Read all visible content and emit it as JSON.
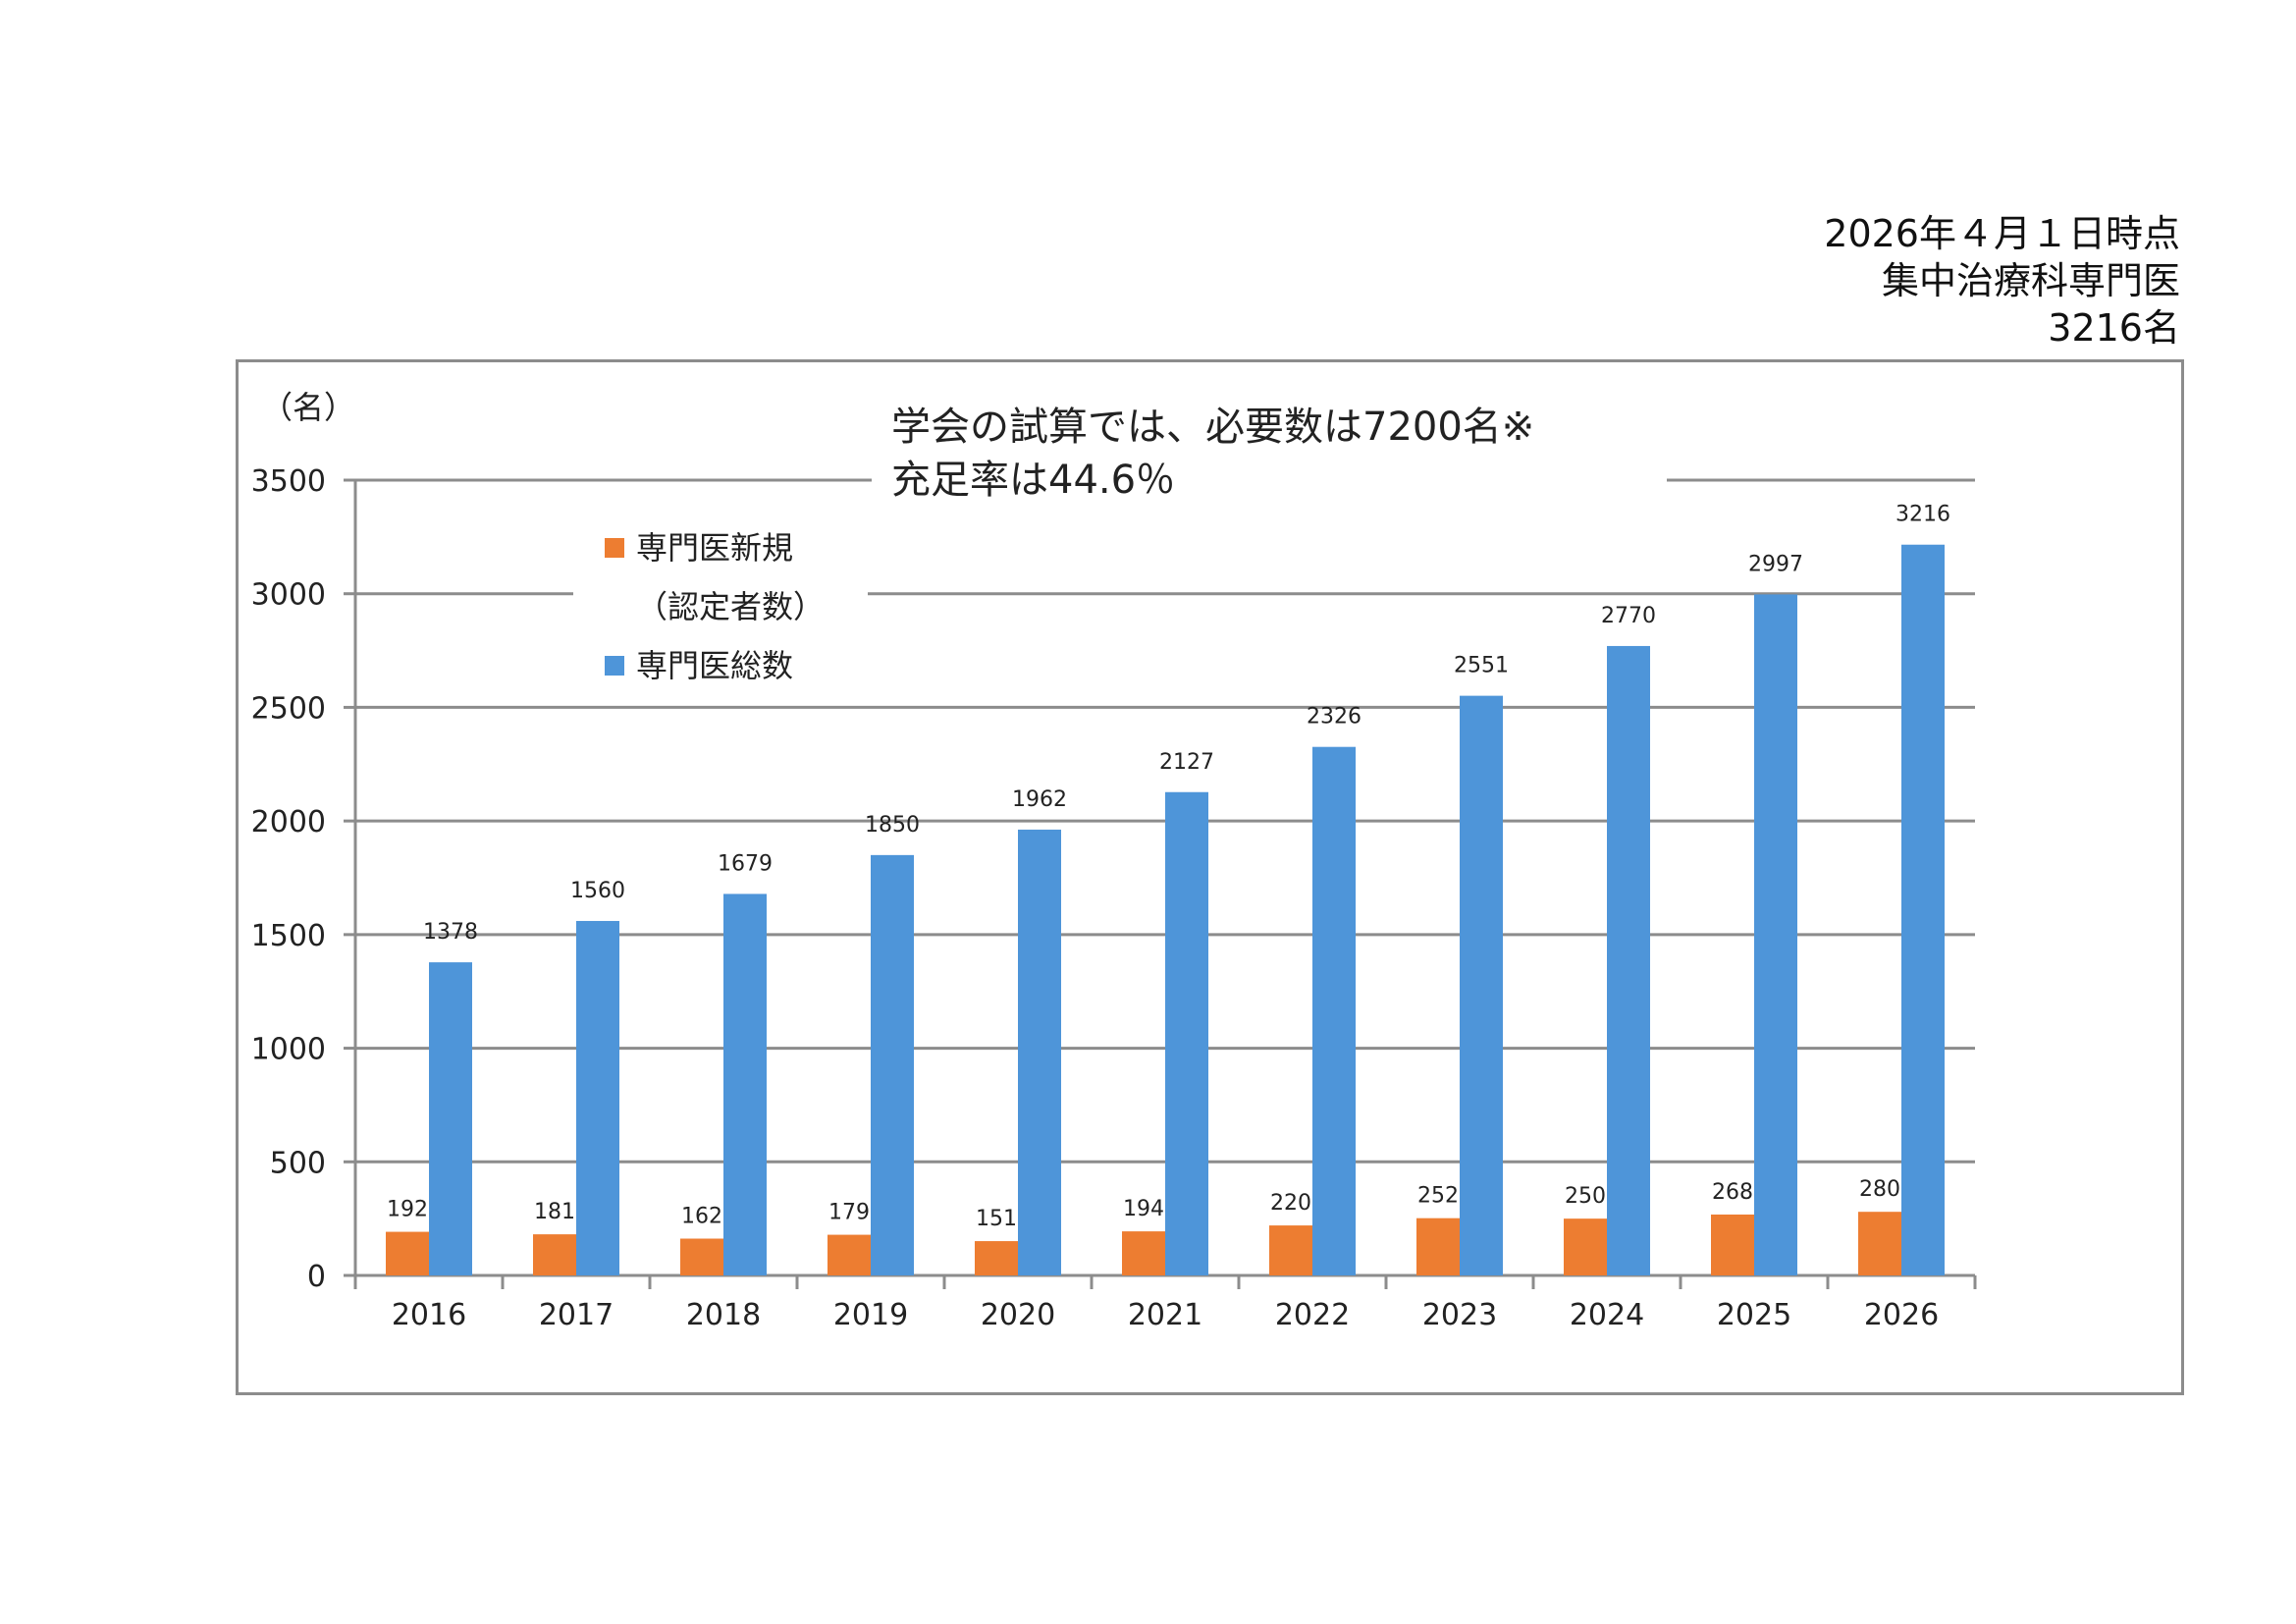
{
  "header": {
    "line1": "2026年４月１日時点",
    "line2": "集中治療科専門医",
    "line3": "3216名"
  },
  "note": {
    "line1": "学会の試算では、必要数は7200名※",
    "line2": "充足率は44.6％"
  },
  "colors": {
    "new": "#ED7D31",
    "total": "#4E95D9",
    "grid": "#8c8c8c"
  },
  "chart_data": {
    "type": "bar",
    "categories": [
      "2016",
      "2017",
      "2018",
      "2019",
      "2020",
      "2021",
      "2022",
      "2023",
      "2024",
      "2025",
      "2026"
    ],
    "series": [
      {
        "name": "専門医新規（認定者数）",
        "legend_line1": "専門医新規",
        "legend_line2": "（認定者数）",
        "values": [
          192,
          181,
          162,
          179,
          151,
          194,
          220,
          252,
          250,
          268,
          280
        ]
      },
      {
        "name": "専門医総数",
        "legend_line1": "専門医総数",
        "values": [
          1378,
          1560,
          1679,
          1850,
          1962,
          2127,
          2326,
          2551,
          2770,
          2997,
          3216
        ]
      }
    ],
    "ylabel": "（名）",
    "ylim": [
      0,
      3500
    ],
    "yticks": [
      0,
      500,
      1000,
      1500,
      2000,
      2500,
      3000,
      3500
    ],
    "grid": true,
    "legend": "top-left"
  }
}
